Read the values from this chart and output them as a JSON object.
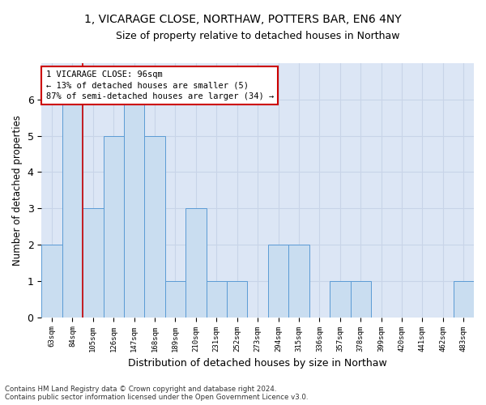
{
  "title": "1, VICARAGE CLOSE, NORTHAW, POTTERS BAR, EN6 4NY",
  "subtitle": "Size of property relative to detached houses in Northaw",
  "xlabel": "Distribution of detached houses by size in Northaw",
  "ylabel": "Number of detached properties",
  "categories": [
    "63sqm",
    "84sqm",
    "105sqm",
    "126sqm",
    "147sqm",
    "168sqm",
    "189sqm",
    "210sqm",
    "231sqm",
    "252sqm",
    "273sqm",
    "294sqm",
    "315sqm",
    "336sqm",
    "357sqm",
    "378sqm",
    "399sqm",
    "420sqm",
    "441sqm",
    "462sqm",
    "483sqm"
  ],
  "values": [
    2,
    6,
    3,
    5,
    6,
    5,
    1,
    3,
    1,
    1,
    0,
    2,
    2,
    0,
    1,
    1,
    0,
    0,
    0,
    0,
    1
  ],
  "bar_color": "#c9ddf0",
  "bar_edge_color": "#5b9bd5",
  "grid_color": "#c8d4e8",
  "background_color": "#dce6f5",
  "red_line_x": 1.5,
  "annotation_text": "1 VICARAGE CLOSE: 96sqm\n← 13% of detached houses are smaller (5)\n87% of semi-detached houses are larger (34) →",
  "annotation_box_color": "#ffffff",
  "annotation_box_edge_color": "#cc0000",
  "footnote": "Contains HM Land Registry data © Crown copyright and database right 2024.\nContains public sector information licensed under the Open Government Licence v3.0.",
  "ylim": [
    0,
    7
  ],
  "yticks": [
    0,
    1,
    2,
    3,
    4,
    5,
    6,
    7
  ],
  "title_fontsize": 10,
  "subtitle_fontsize": 9
}
